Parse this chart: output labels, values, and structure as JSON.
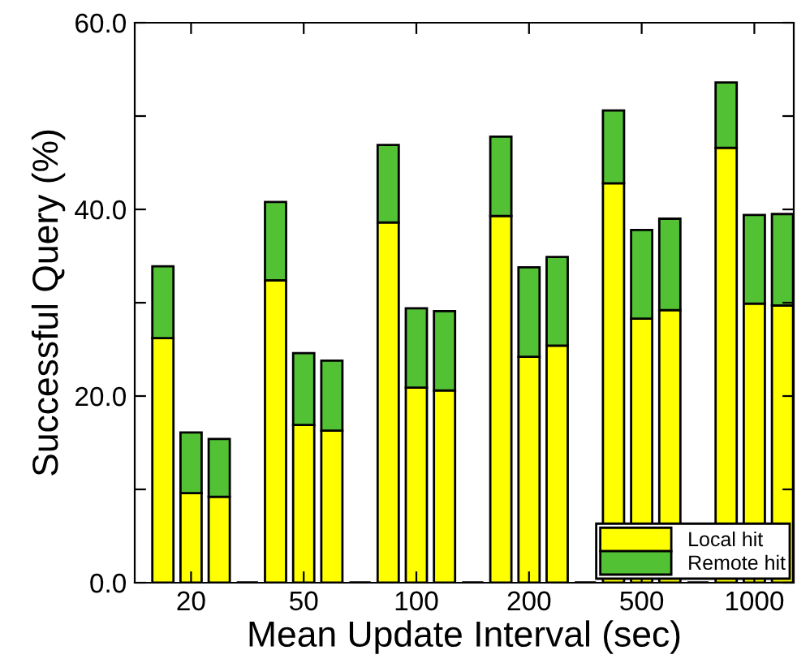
{
  "chart_data": {
    "type": "bar",
    "stacked": true,
    "xlabel": "Mean Update Interval (sec)",
    "ylabel": "Successful Query (%)",
    "categories": [
      null,
      "20",
      null,
      null,
      null,
      "50",
      null,
      null,
      null,
      "100",
      null,
      null,
      null,
      "200",
      null,
      null,
      null,
      "500",
      null,
      null,
      null,
      "1000",
      null
    ],
    "series": [
      {
        "name": "Local hit",
        "color": "#ffff00",
        "colors": [
          "#ffff00",
          "#ffff00",
          "#ffff00",
          "#000000",
          "#ffff00",
          "#ffff00",
          "#ffff00",
          "#000000",
          "#ffff00",
          "#ffff00",
          "#ffff00",
          "#000000",
          "#ffff00",
          "#ffff00",
          "#ffff00",
          "#000000",
          "#ffff00",
          "#ffff00",
          "#ffff00",
          "#000000",
          "#ffff00",
          "#ffff00",
          "#ffff00"
        ],
        "values": [
          26.2,
          9.6,
          9.2,
          0,
          32.4,
          16.9,
          16.3,
          0,
          38.6,
          20.9,
          20.6,
          0,
          39.3,
          24.2,
          25.4,
          0,
          42.8,
          28.3,
          29.2,
          0,
          46.6,
          29.9,
          29.7
        ]
      },
      {
        "name": "Remote hit",
        "color": "#52c234",
        "colors": [
          "#52c234",
          "#52c234",
          "#52c234",
          "#000000",
          "#52c234",
          "#52c234",
          "#52c234",
          "#000000",
          "#52c234",
          "#52c234",
          "#52c234",
          "#000000",
          "#52c234",
          "#52c234",
          "#52c234",
          "#000000",
          "#52c234",
          "#52c234",
          "#52c234",
          "#000000",
          "#52c234",
          "#52c234",
          "#52c234"
        ],
        "values": [
          7.7,
          6.5,
          6.2,
          0,
          8.4,
          7.7,
          7.5,
          0,
          8.3,
          8.5,
          8.5,
          0,
          8.5,
          9.6,
          9.5,
          0,
          7.8,
          9.5,
          9.8,
          0,
          7.0,
          9.5,
          9.8
        ]
      }
    ],
    "ylim": [
      0,
      60
    ],
    "yticks": [
      {
        "value": 0,
        "label": "0.0"
      },
      {
        "value": 10,
        "label": null
      },
      {
        "value": 20,
        "label": "20.0"
      },
      {
        "value": 30,
        "label": null
      },
      {
        "value": 40,
        "label": "40.0"
      },
      {
        "value": 50,
        "label": null
      },
      {
        "value": 60,
        "label": "60.0"
      }
    ],
    "legend": "bottom right",
    "grid": false
  }
}
